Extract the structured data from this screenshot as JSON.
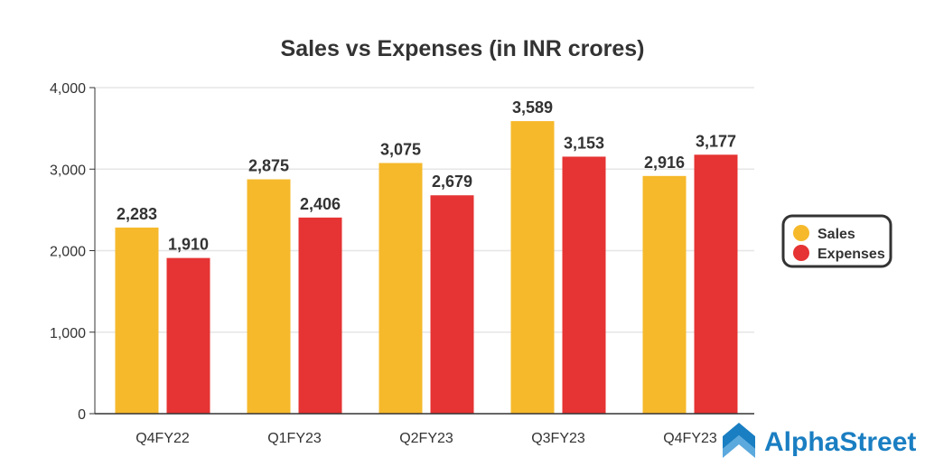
{
  "chart_data": {
    "type": "bar",
    "title": "Sales vs Expenses (in INR crores)",
    "xlabel": "",
    "ylabel": "",
    "categories": [
      "Q4FY22",
      "Q1FY23",
      "Q2FY23",
      "Q3FY23",
      "Q4FY23"
    ],
    "series": [
      {
        "name": "Sales",
        "color": "#f6b92b",
        "values": [
          2283,
          2875,
          3075,
          3589,
          2916
        ],
        "labels": [
          "2,283",
          "2,875",
          "3,075",
          "3,589",
          "2,916"
        ]
      },
      {
        "name": "Expenses",
        "color": "#e63333",
        "values": [
          1910,
          2406,
          2679,
          3153,
          3177
        ],
        "labels": [
          "1,910",
          "2,406",
          "2,679",
          "3,153",
          "3,177"
        ]
      }
    ],
    "ylim": [
      0,
      4000
    ],
    "yticks": [
      0,
      1000,
      2000,
      3000,
      4000
    ],
    "ytick_labels": [
      "0",
      "1,000",
      "2,000",
      "3,000",
      "4,000"
    ],
    "grid": true,
    "legend_position": "right"
  },
  "brand": {
    "name": "AlphaStreet",
    "color": "#1a7ec2"
  }
}
